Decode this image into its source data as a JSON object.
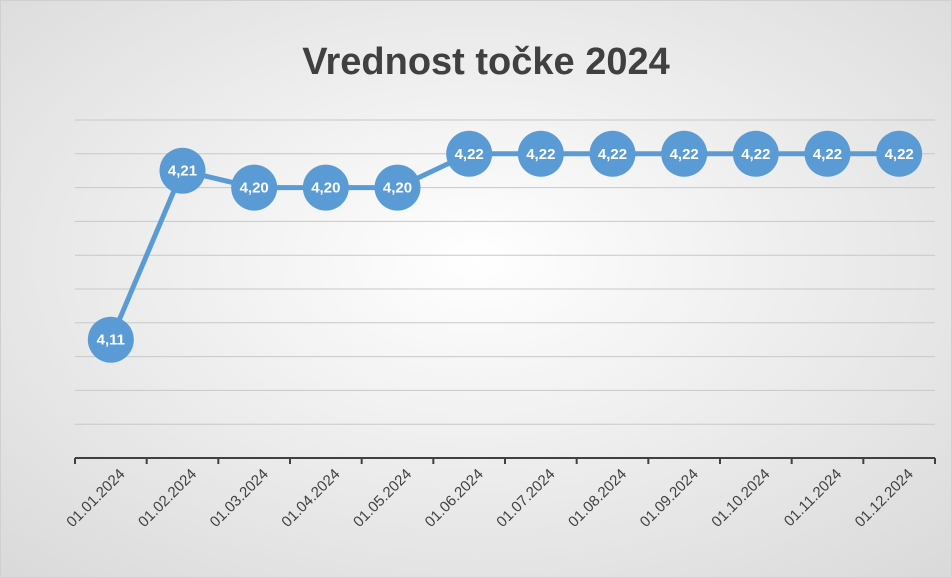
{
  "chart_data": {
    "type": "line",
    "title": "Vrednost točke 2024",
    "categories": [
      "01.01.2024",
      "01.02.2024",
      "01.03.2024",
      "01.04.2024",
      "01.05.2024",
      "01.06.2024",
      "01.07.2024",
      "01.08.2024",
      "01.09.2024",
      "01.10.2024",
      "01.11.2024",
      "01.12.2024"
    ],
    "series": [
      {
        "name": "Vrednost točke",
        "color": "#5b9bd5",
        "values": [
          4.11,
          4.21,
          4.2,
          4.2,
          4.2,
          4.22,
          4.22,
          4.22,
          4.22,
          4.22,
          4.22,
          4.22
        ],
        "value_labels": [
          "4,11",
          "4,21",
          "4,20",
          "4,20",
          "4,20",
          "4,22",
          "4,22",
          "4,22",
          "4,22",
          "4,22",
          "4,22",
          "4,22"
        ]
      }
    ],
    "ylim": [
      4.04,
      4.24
    ],
    "yticks": [
      4.04,
      4.06,
      4.08,
      4.1,
      4.12,
      4.14,
      4.16,
      4.18,
      4.2,
      4.22,
      4.24
    ],
    "grid": true
  }
}
